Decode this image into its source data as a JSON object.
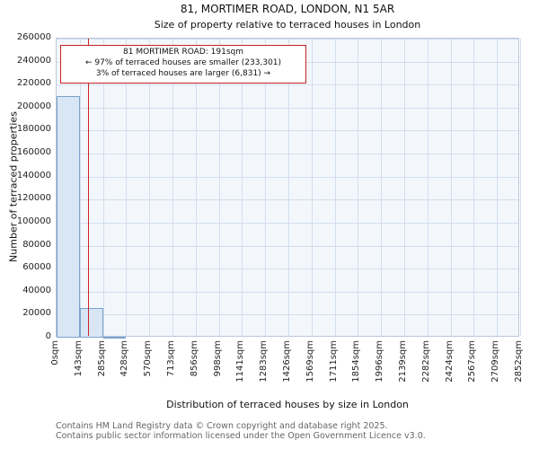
{
  "chart_data": {
    "type": "bar",
    "title": "81, MORTIMER ROAD, LONDON, N1 5AR",
    "subtitle": "Size of property relative to terraced houses in London",
    "xlabel": "Distribution of terraced houses by size in London",
    "ylabel": "Number of terraced properties",
    "bin_edges_sqm": [
      0,
      143,
      285,
      428,
      570,
      713,
      856,
      998,
      1141,
      1283,
      1426,
      1569,
      1711,
      1854,
      1996,
      2139,
      2282,
      2424,
      2567,
      2709,
      2852
    ],
    "x_tick_labels": [
      "0sqm",
      "143sqm",
      "285sqm",
      "428sqm",
      "570sqm",
      "713sqm",
      "856sqm",
      "998sqm",
      "1141sqm",
      "1283sqm",
      "1426sqm",
      "1569sqm",
      "1711sqm",
      "1854sqm",
      "1996sqm",
      "2139sqm",
      "2282sqm",
      "2424sqm",
      "2567sqm",
      "2709sqm",
      "2852sqm"
    ],
    "values": [
      210000,
      26000,
      1100,
      150,
      40,
      15,
      8,
      4,
      2,
      1,
      1,
      1,
      0,
      0,
      0,
      0,
      0,
      0,
      0,
      0
    ],
    "ylim": [
      0,
      260000
    ],
    "y_tick_values": [
      0,
      20000,
      40000,
      60000,
      80000,
      100000,
      120000,
      140000,
      160000,
      180000,
      200000,
      220000,
      240000,
      260000
    ],
    "grid": true,
    "marker": {
      "value_sqm": 191,
      "color": "#cc2222"
    },
    "annotation": {
      "line1": "81 MORTIMER ROAD: 191sqm",
      "line2": "← 97% of terraced houses are smaller (233,301)",
      "line3": "3% of terraced houses are larger (6,831) →"
    },
    "colors": {
      "bar_fill": "#d9e6f5",
      "bar_edge": "#7ba3cc",
      "marker_line": "#cc2222",
      "grid_line": "#d2deee",
      "plot_background": "#f3f7fc"
    }
  },
  "footer": {
    "line1": "Contains HM Land Registry data © Crown copyright and database right 2025.",
    "line2": "Contains public sector information licensed under the Open Government Licence v3.0."
  }
}
